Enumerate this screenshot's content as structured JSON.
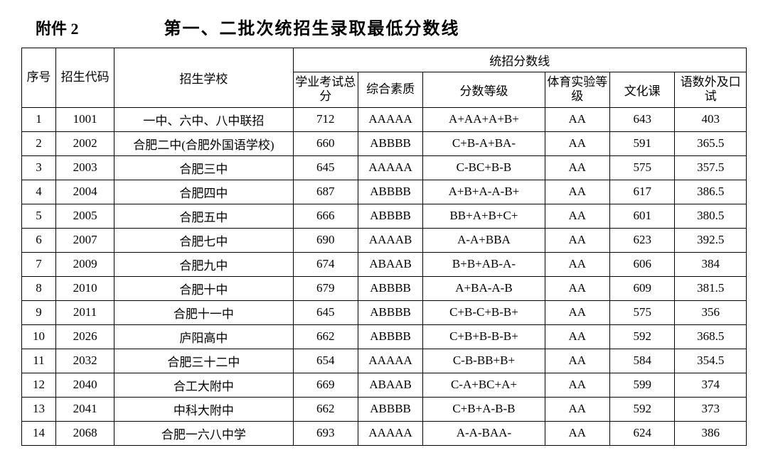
{
  "header": {
    "attachment": "附件 2",
    "title": "第一、二批次统招生录取最低分数线"
  },
  "table": {
    "header_group": "统招分数线",
    "columns": {
      "seq": "序号",
      "code": "招生代码",
      "school": "招生学校",
      "total": "学业考试总分",
      "quality": "综合素质",
      "grade": "分数等级",
      "pe": "体育实验等级",
      "culture": "文化课",
      "lang": "语数外及口试"
    },
    "rows": [
      {
        "seq": "1",
        "code": "1001",
        "school": "一中、六中、八中联招",
        "total": "712",
        "quality": "AAAAA",
        "grade": "A+AA+A+B+",
        "pe": "AA",
        "culture": "643",
        "lang": "403"
      },
      {
        "seq": "2",
        "code": "2002",
        "school": "合肥二中(合肥外国语学校)",
        "total": "660",
        "quality": "ABBBB",
        "grade": "C+B-A+BA-",
        "pe": "AA",
        "culture": "591",
        "lang": "365.5"
      },
      {
        "seq": "3",
        "code": "2003",
        "school": "合肥三中",
        "total": "645",
        "quality": "AAAAA",
        "grade": "C-BC+B-B",
        "pe": "AA",
        "culture": "575",
        "lang": "357.5"
      },
      {
        "seq": "4",
        "code": "2004",
        "school": "合肥四中",
        "total": "687",
        "quality": "ABBBB",
        "grade": "A+B+A-A-B+",
        "pe": "AA",
        "culture": "617",
        "lang": "386.5"
      },
      {
        "seq": "5",
        "code": "2005",
        "school": "合肥五中",
        "total": "666",
        "quality": "ABBBB",
        "grade": "BB+A+B+C+",
        "pe": "AA",
        "culture": "601",
        "lang": "380.5"
      },
      {
        "seq": "6",
        "code": "2007",
        "school": "合肥七中",
        "total": "690",
        "quality": "AAAAB",
        "grade": "A-A+BBA",
        "pe": "AA",
        "culture": "623",
        "lang": "392.5"
      },
      {
        "seq": "7",
        "code": "2009",
        "school": "合肥九中",
        "total": "674",
        "quality": "ABAAB",
        "grade": "B+B+AB-A-",
        "pe": "AA",
        "culture": "606",
        "lang": "384"
      },
      {
        "seq": "8",
        "code": "2010",
        "school": "合肥十中",
        "total": "679",
        "quality": "ABBBB",
        "grade": "A+BA-A-B",
        "pe": "AA",
        "culture": "609",
        "lang": "381.5"
      },
      {
        "seq": "9",
        "code": "2011",
        "school": "合肥十一中",
        "total": "645",
        "quality": "ABBBB",
        "grade": "C+B-C+B-B+",
        "pe": "AA",
        "culture": "575",
        "lang": "356"
      },
      {
        "seq": "10",
        "code": "2026",
        "school": "庐阳高中",
        "total": "662",
        "quality": "ABBBB",
        "grade": "C+B+B-B-B+",
        "pe": "AA",
        "culture": "592",
        "lang": "368.5"
      },
      {
        "seq": "11",
        "code": "2032",
        "school": "合肥三十二中",
        "total": "654",
        "quality": "AAAAA",
        "grade": "C-B-BB+B+",
        "pe": "AA",
        "culture": "584",
        "lang": "354.5"
      },
      {
        "seq": "12",
        "code": "2040",
        "school": "合工大附中",
        "total": "669",
        "quality": "ABAAB",
        "grade": "C-A+BC+A+",
        "pe": "AA",
        "culture": "599",
        "lang": "374"
      },
      {
        "seq": "13",
        "code": "2041",
        "school": "中科大附中",
        "total": "662",
        "quality": "ABBBB",
        "grade": "C+B+A-B-B",
        "pe": "AA",
        "culture": "592",
        "lang": "373"
      },
      {
        "seq": "14",
        "code": "2068",
        "school": "合肥一六八中学",
        "total": "693",
        "quality": "AAAAA",
        "grade": "A-A-BAA-",
        "pe": "AA",
        "culture": "624",
        "lang": "386"
      }
    ]
  }
}
